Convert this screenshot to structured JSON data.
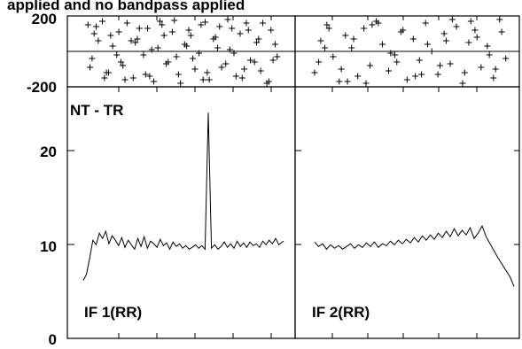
{
  "header": {
    "title_fragment": "applied and no bandpass applied"
  },
  "phase_axis": {
    "tick_labels": [
      "200",
      "-200"
    ],
    "ylim": [
      -200,
      200
    ]
  },
  "amp_axis": {
    "tick_labels": [
      "20",
      "10",
      "0"
    ],
    "ylim": [
      0,
      28.2
    ]
  },
  "baseline_label": "NT - TR",
  "panel_labels": [
    "IF 1(RR)",
    "IF 2(RR)"
  ],
  "chart_data": [
    {
      "type": "scatter",
      "panel": "phase-IF1",
      "ylim": [
        -200,
        200
      ],
      "xlim": [
        0,
        1
      ],
      "marker": "+",
      "x": [
        0.04,
        0.06,
        0.09,
        0.11,
        0.13,
        0.16,
        0.19,
        0.21,
        0.23,
        0.26,
        0.28,
        0.31,
        0.33,
        0.36,
        0.38,
        0.41,
        0.43,
        0.46,
        0.48,
        0.51,
        0.53,
        0.56,
        0.58,
        0.61,
        0.63,
        0.66,
        0.68,
        0.71,
        0.73,
        0.76,
        0.78,
        0.81,
        0.83,
        0.86,
        0.88,
        0.91,
        0.93,
        0.96,
        0.05,
        0.08,
        0.12,
        0.15,
        0.18,
        0.22,
        0.25,
        0.29,
        0.32,
        0.35,
        0.39,
        0.42,
        0.45,
        0.49,
        0.52,
        0.55,
        0.59,
        0.62,
        0.65,
        0.69,
        0.72,
        0.75,
        0.79,
        0.82,
        0.85,
        0.89,
        0.92,
        0.95,
        0.07,
        0.14,
        0.2,
        0.27,
        0.34,
        0.4,
        0.47,
        0.54,
        0.6,
        0.67,
        0.74,
        0.8,
        0.87,
        0.94
      ],
      "y": [
        150,
        -40,
        60,
        170,
        -120,
        30,
        110,
        -80,
        160,
        -150,
        70,
        -20,
        130,
        -170,
        20,
        90,
        -60,
        175,
        -130,
        40,
        120,
        -100,
        -10,
        165,
        -160,
        80,
        140,
        -70,
        10,
        -140,
        100,
        160,
        -50,
        50,
        -110,
        -180,
        120,
        -30,
        -90,
        140,
        -150,
        90,
        -20,
        -160,
        60,
        130,
        -130,
        10,
        170,
        -70,
        110,
        -180,
        30,
        -40,
        150,
        -120,
        70,
        -90,
        180,
        -10,
        -150,
        120,
        -60,
        160,
        -170,
        40,
        100,
        -120,
        -60,
        50,
        -140,
        150,
        -30,
        90,
        -160,
        20,
        130,
        -100,
        70,
        -50
      ]
    },
    {
      "type": "scatter",
      "panel": "phase-IF2",
      "ylim": [
        -200,
        200
      ],
      "xlim": [
        0,
        1
      ],
      "marker": "+",
      "x": [
        0.03,
        0.06,
        0.09,
        0.12,
        0.15,
        0.18,
        0.21,
        0.24,
        0.27,
        0.3,
        0.33,
        0.36,
        0.39,
        0.42,
        0.45,
        0.48,
        0.51,
        0.54,
        0.57,
        0.6,
        0.63,
        0.66,
        0.69,
        0.72,
        0.75,
        0.78,
        0.81,
        0.84,
        0.87,
        0.9,
        0.93,
        0.96,
        0.05,
        0.1,
        0.16,
        0.22,
        0.28,
        0.34,
        0.4,
        0.46,
        0.52,
        0.58,
        0.64,
        0.7,
        0.76,
        0.82,
        0.88,
        0.94,
        0.08,
        0.19,
        0.31,
        0.43,
        0.55,
        0.67,
        0.79,
        0.91
      ],
      "y": [
        -120,
        60,
        150,
        -30,
        -170,
        90,
        20,
        -140,
        130,
        -80,
        170,
        40,
        -110,
        -20,
        110,
        -160,
        70,
        -50,
        160,
        0,
        -130,
        100,
        -70,
        140,
        -190,
        50,
        120,
        -90,
        30,
        -150,
        180,
        -40,
        -60,
        130,
        -100,
        70,
        -180,
        160,
        -10,
        120,
        -140,
        40,
        -80,
        190,
        -120,
        80,
        -20,
        110,
        20,
        -170,
        150,
        -60,
        -130,
        60,
        170,
        -100
      ]
    },
    {
      "type": "line",
      "panel": "amplitude-IF1",
      "ylim": [
        0,
        28.2
      ],
      "x": [
        0,
        0.016,
        0.032,
        0.048,
        0.064,
        0.08,
        0.096,
        0.112,
        0.128,
        0.144,
        0.16,
        0.176,
        0.192,
        0.208,
        0.224,
        0.24,
        0.256,
        0.272,
        0.288,
        0.304,
        0.32,
        0.336,
        0.352,
        0.368,
        0.384,
        0.4,
        0.416,
        0.432,
        0.448,
        0.464,
        0.48,
        0.496,
        0.512,
        0.528,
        0.544,
        0.56,
        0.576,
        0.592,
        0.608,
        0.624,
        0.64,
        0.656,
        0.672,
        0.688,
        0.704,
        0.72,
        0.736,
        0.752,
        0.768,
        0.784,
        0.8,
        0.816,
        0.832,
        0.848,
        0.864,
        0.88,
        0.896,
        0.912,
        0.928,
        0.944,
        0.96,
        0.976,
        1.0
      ],
      "y": [
        6.5,
        7.2,
        9.0,
        11.0,
        10.5,
        11.8,
        11.2,
        12.0,
        10.6,
        11.5,
        11.0,
        10.4,
        11.3,
        10.2,
        11.0,
        10.5,
        10.0,
        11.2,
        10.3,
        11.4,
        10.1,
        10.9,
        10.6,
        10.2,
        11.1,
        10.4,
        10.7,
        10.0,
        10.8,
        10.3,
        10.6,
        10.1,
        10.4,
        10.0,
        10.2,
        10.5,
        10.1,
        10.4,
        10.0,
        25.3,
        10.1,
        10.5,
        10.0,
        10.3,
        10.8,
        10.2,
        10.6,
        10.1,
        10.9,
        10.3,
        10.7,
        10.2,
        10.8,
        10.4,
        10.6,
        10.2,
        10.9,
        10.5,
        11.0,
        10.6,
        11.2,
        10.5,
        10.9
      ]
    },
    {
      "type": "line",
      "panel": "amplitude-IF2",
      "ylim": [
        0,
        28.2
      ],
      "x": [
        0,
        0.02,
        0.04,
        0.06,
        0.08,
        0.1,
        0.12,
        0.14,
        0.16,
        0.18,
        0.2,
        0.22,
        0.24,
        0.26,
        0.28,
        0.3,
        0.32,
        0.34,
        0.36,
        0.38,
        0.4,
        0.42,
        0.44,
        0.46,
        0.48,
        0.5,
        0.52,
        0.54,
        0.56,
        0.58,
        0.6,
        0.62,
        0.64,
        0.66,
        0.68,
        0.7,
        0.72,
        0.74,
        0.76,
        0.78,
        0.8,
        0.82,
        0.84,
        0.86,
        0.88,
        0.9,
        0.92,
        0.94,
        0.96,
        0.98,
        1.0
      ],
      "y": [
        10.8,
        10.3,
        10.6,
        10.0,
        10.5,
        10.1,
        10.4,
        10.0,
        10.3,
        10.6,
        10.1,
        10.5,
        10.2,
        10.7,
        10.3,
        10.8,
        10.2,
        10.6,
        10.4,
        10.9,
        10.5,
        11.0,
        10.6,
        11.1,
        10.7,
        11.3,
        10.8,
        11.5,
        11.0,
        11.6,
        11.1,
        11.8,
        11.3,
        12.0,
        11.4,
        12.3,
        11.5,
        12.1,
        11.6,
        12.4,
        11.2,
        11.8,
        12.6,
        11.4,
        10.6,
        9.8,
        9.0,
        8.3,
        7.6,
        6.9,
        5.8
      ]
    }
  ]
}
